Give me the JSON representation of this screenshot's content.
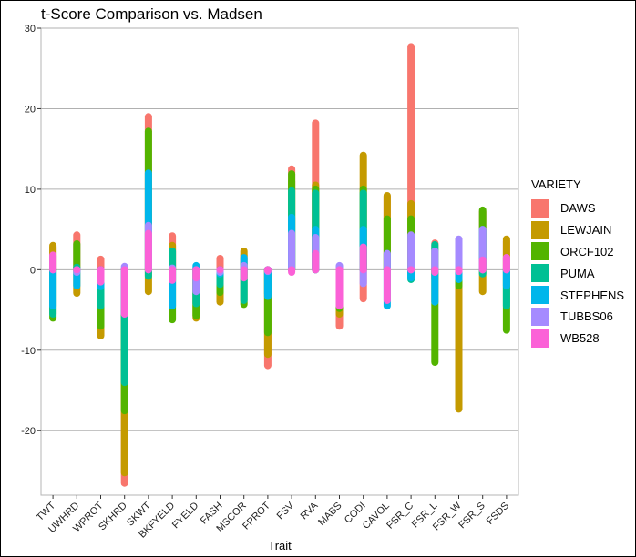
{
  "chart_data": {
    "type": "range-bar",
    "title": "t-Score Comparison vs. Madsen",
    "xlabel": "Trait",
    "ylabel": "",
    "ylim": [
      -28,
      30
    ],
    "yticks": [
      30,
      20,
      10,
      0,
      -10,
      -20
    ],
    "grid": true,
    "legend_title": "VARIETY",
    "legend_position": "right",
    "categories": [
      "TWT",
      "UWHRD",
      "WPROT",
      "SKHRD",
      "SKWT",
      "BKFYELD",
      "FYELD",
      "FASH",
      "MSCOR",
      "FPROT",
      "FSV",
      "RVA",
      "MABS",
      "CODI",
      "CAVOL",
      "FSR_C",
      "FSR_L",
      "FSR_W",
      "FSR_S",
      "FSDS"
    ],
    "series": [
      {
        "name": "DAWS",
        "color": "#F8766D",
        "values": [
          2.8,
          4.3,
          1.3,
          -26.5,
          19.0,
          4.2,
          0.2,
          1.4,
          1.8,
          -11.9,
          12.5,
          18.2,
          -7.0,
          -3.6,
          9.1,
          27.7,
          3.3,
          3.7,
          7.2,
          3.5
        ]
      },
      {
        "name": "LEWJAIN",
        "color": "#C49A00",
        "values": [
          3.0,
          -2.9,
          -8.2,
          -25.2,
          -2.7,
          3.0,
          -6.0,
          -4.0,
          2.3,
          -10.5,
          11.0,
          10.5,
          -5.5,
          14.2,
          9.2,
          8.2,
          -1.2,
          -17.3,
          -2.7,
          3.8
        ]
      },
      {
        "name": "ORCF102",
        "color": "#53B400",
        "values": [
          -6.0,
          3.2,
          -7.0,
          -17.5,
          17.2,
          -6.2,
          -5.7,
          -2.8,
          -4.3,
          -7.8,
          11.9,
          10.0,
          -4.8,
          10.0,
          6.3,
          6.3,
          -11.5,
          -2.0,
          7.4,
          -7.5
        ]
      },
      {
        "name": "PUMA",
        "color": "#00C094",
        "values": [
          -5.5,
          0.3,
          -4.5,
          -14.0,
          -0.8,
          2.3,
          -4.2,
          -1.8,
          -3.8,
          -3.0,
          9.8,
          9.5,
          -3.8,
          9.5,
          2.0,
          -1.2,
          3.1,
          -1.0,
          -0.5,
          -4.5
        ]
      },
      {
        "name": "STEPHENS",
        "color": "#00B6EB",
        "values": [
          -4.5,
          -2.0,
          -2.1,
          -5.5,
          12.0,
          -4.5,
          0.5,
          -0.5,
          1.5,
          -3.3,
          6.5,
          5.0,
          -2.2,
          5.0,
          -4.5,
          -1.0,
          -4.0,
          -1.2,
          5.0,
          -2.0
        ]
      },
      {
        "name": "TUBBS06",
        "color": "#A58AFF",
        "values": [
          1.7,
          -0.3,
          -1.0,
          0.4,
          5.5,
          0.2,
          -2.7,
          -0.3,
          0.5,
          -0.2,
          4.5,
          4.0,
          0.5,
          -1.7,
          2.0,
          4.3,
          2.3,
          3.8,
          5.0,
          1.5
        ]
      },
      {
        "name": "WB528",
        "color": "#FB61D7",
        "values": [
          1.8,
          0.0,
          -1.5,
          -5.5,
          4.5,
          -1.3,
          -1.0,
          0.0,
          -1.0,
          -0.1,
          -0.3,
          2.0,
          -4.5,
          2.8,
          -3.8,
          0.0,
          -0.3,
          -0.2,
          1.2,
          1.5
        ]
      }
    ]
  }
}
